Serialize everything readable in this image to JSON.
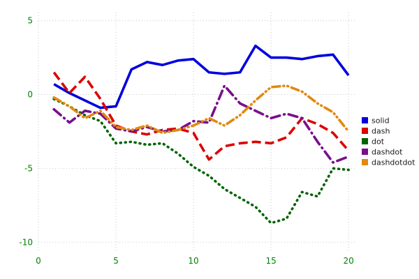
{
  "figure": {
    "background": "#ffffff",
    "grid_color": "#c8c8c8",
    "tick_label_color": "#008000",
    "legend_text_color": "#1a1a1a"
  },
  "chart_data": {
    "type": "line",
    "title": "",
    "xlabel": "",
    "ylabel": "",
    "xlim": [
      0,
      20.4
    ],
    "ylim": [
      -10.6,
      5.55
    ],
    "x_ticks": [
      0,
      5,
      10,
      15,
      20
    ],
    "y_ticks": [
      5,
      0,
      -5,
      -10
    ],
    "grid": true,
    "legend_position": "right",
    "x": [
      1,
      2,
      3,
      4,
      5,
      6,
      7,
      8,
      9,
      10,
      11,
      12,
      13,
      14,
      15,
      16,
      17,
      18,
      19,
      20
    ],
    "series": [
      {
        "name": "solid",
        "style": "solid",
        "color": "#0000dd",
        "values": [
          0.7,
          0.1,
          -0.4,
          -0.9,
          -0.8,
          1.7,
          2.2,
          2.0,
          2.3,
          2.4,
          1.5,
          1.4,
          1.5,
          3.3,
          2.5,
          2.5,
          2.4,
          2.6,
          2.7,
          1.3
        ]
      },
      {
        "name": "dash",
        "style": "dash",
        "color": "#dd0000",
        "values": [
          1.5,
          0.1,
          1.2,
          -0.3,
          -2.1,
          -2.5,
          -2.7,
          -2.4,
          -2.3,
          -2.6,
          -4.4,
          -3.5,
          -3.3,
          -3.2,
          -3.3,
          -2.9,
          -1.6,
          -2.0,
          -2.6,
          -3.8
        ]
      },
      {
        "name": "dot",
        "style": "dot",
        "color": "#006400",
        "values": [
          -0.3,
          -0.8,
          -1.4,
          -1.8,
          -3.3,
          -3.2,
          -3.4,
          -3.3,
          -4.0,
          -4.9,
          -5.5,
          -6.4,
          -7.0,
          -7.6,
          -8.7,
          -8.4,
          -6.6,
          -6.9,
          -5.0,
          -5.1
        ]
      },
      {
        "name": "dashdot",
        "style": "dashdot",
        "color": "#7a0e8e",
        "values": [
          -1.0,
          -1.9,
          -1.1,
          -1.3,
          -2.3,
          -2.5,
          -2.2,
          -2.5,
          -2.4,
          -1.8,
          -1.9,
          0.6,
          -0.6,
          -1.1,
          -1.6,
          -1.3,
          -1.6,
          -3.2,
          -4.6,
          -4.2
        ]
      },
      {
        "name": "dashdotdot",
        "style": "dashdotdot",
        "color": "#e08a10",
        "values": [
          -0.2,
          -0.8,
          -1.6,
          -1.1,
          -2.2,
          -2.4,
          -2.1,
          -2.6,
          -2.4,
          -2.1,
          -1.6,
          -2.1,
          -1.4,
          -0.4,
          0.5,
          0.6,
          0.2,
          -0.6,
          -1.2,
          -2.5
        ]
      }
    ]
  },
  "legend": {
    "items": [
      {
        "label": "solid"
      },
      {
        "label": "dash"
      },
      {
        "label": "dot"
      },
      {
        "label": "dashdot"
      },
      {
        "label": "dashdotdot"
      }
    ]
  }
}
